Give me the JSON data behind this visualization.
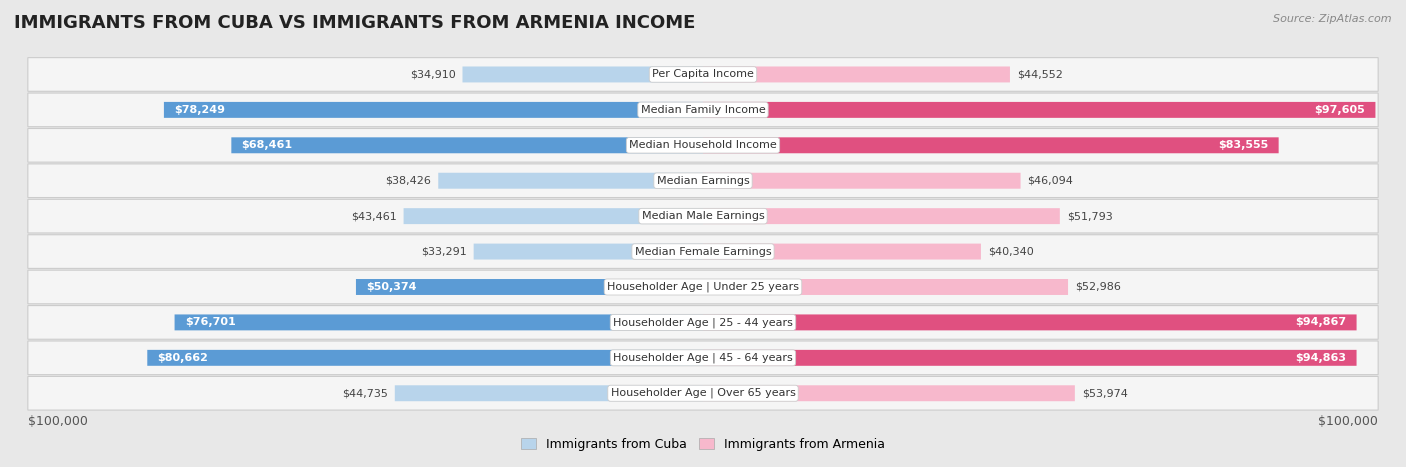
{
  "title": "IMMIGRANTS FROM CUBA VS IMMIGRANTS FROM ARMENIA INCOME",
  "source": "Source: ZipAtlas.com",
  "categories": [
    "Per Capita Income",
    "Median Family Income",
    "Median Household Income",
    "Median Earnings",
    "Median Male Earnings",
    "Median Female Earnings",
    "Householder Age | Under 25 years",
    "Householder Age | 25 - 44 years",
    "Householder Age | 45 - 64 years",
    "Householder Age | Over 65 years"
  ],
  "cuba_values": [
    34910,
    78249,
    68461,
    38426,
    43461,
    33291,
    50374,
    76701,
    80662,
    44735
  ],
  "armenia_values": [
    44552,
    97605,
    83555,
    46094,
    51793,
    40340,
    52986,
    94867,
    94863,
    53974
  ],
  "cuba_color_light": "#b8d4eb",
  "cuba_color_dark": "#5b9bd5",
  "armenia_color_light": "#f7b8cc",
  "armenia_color_dark": "#e05080",
  "cuba_label": "Immigrants from Cuba",
  "armenia_label": "Immigrants from Armenia",
  "max_value": 100000,
  "background_color": "#e8e8e8",
  "row_bg_color": "#f5f5f5",
  "title_fontsize": 13,
  "source_fontsize": 8,
  "tick_label_fontsize": 9,
  "category_fontsize": 8,
  "value_fontsize": 8,
  "cuba_dark_threshold": 0.45,
  "armenia_dark_threshold": 0.6
}
